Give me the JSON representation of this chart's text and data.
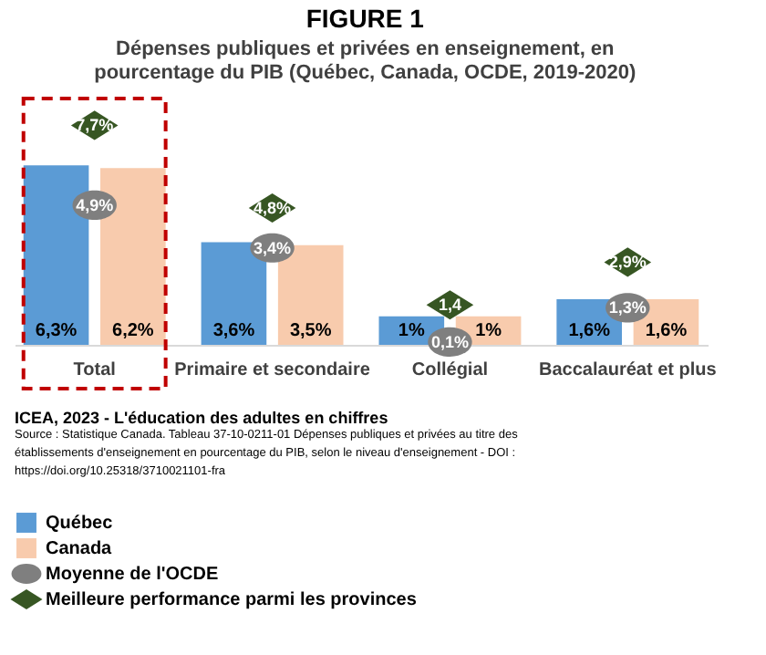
{
  "chart_data": {
    "type": "bar",
    "title": "FIGURE 1",
    "subtitle": "Dépenses publiques et privées en enseignement, en pourcentage du PIB (Québec, Canada, OCDE, 2019-2020)",
    "categories": [
      "Total",
      "Primaire et secondaire",
      "Collégial",
      "Baccalauréat et plus"
    ],
    "series": [
      {
        "name": "Québec",
        "color": "#5b9bd5",
        "values": [
          6.3,
          3.6,
          1,
          1.6
        ],
        "value_labels": [
          "6,3%",
          "3,6%",
          "1%",
          "1,6%"
        ]
      },
      {
        "name": "Canada",
        "color": "#f8cbad",
        "values": [
          6.2,
          3.5,
          1,
          1.6
        ],
        "value_labels": [
          "6,2%",
          "3,5%",
          "1%",
          "1,6%"
        ]
      },
      {
        "name": "Moyenne de l'OCDE",
        "type": "scatter",
        "marker": "circle",
        "color": "#7f7f7f",
        "values": [
          4.9,
          3.4,
          0.1,
          1.3
        ],
        "value_labels": [
          "4,9%",
          "3,4%",
          "0,1%",
          "1,3%"
        ]
      },
      {
        "name": "Meilleure performance parmi les provinces",
        "type": "scatter",
        "marker": "diamond",
        "color": "#375623",
        "values": [
          7.7,
          4.8,
          1.4,
          2.9
        ],
        "value_labels": [
          "7,7%",
          "4,8%",
          "1,4",
          "2,9%"
        ]
      }
    ],
    "legend": "bottom",
    "grid": false,
    "annotations": [
      "ICEA, 2023 - L'éducation des adultes en chiffres",
      "Source : Statistique Canada. Tableau 37-10-0211-01 Dépenses publiques et privées au titre des établissements d'enseignement en pourcentage du PIB, selon le niveau d'enseignement - DOI : https://doi.org/10.25318/3710021101-fra"
    ]
  }
}
